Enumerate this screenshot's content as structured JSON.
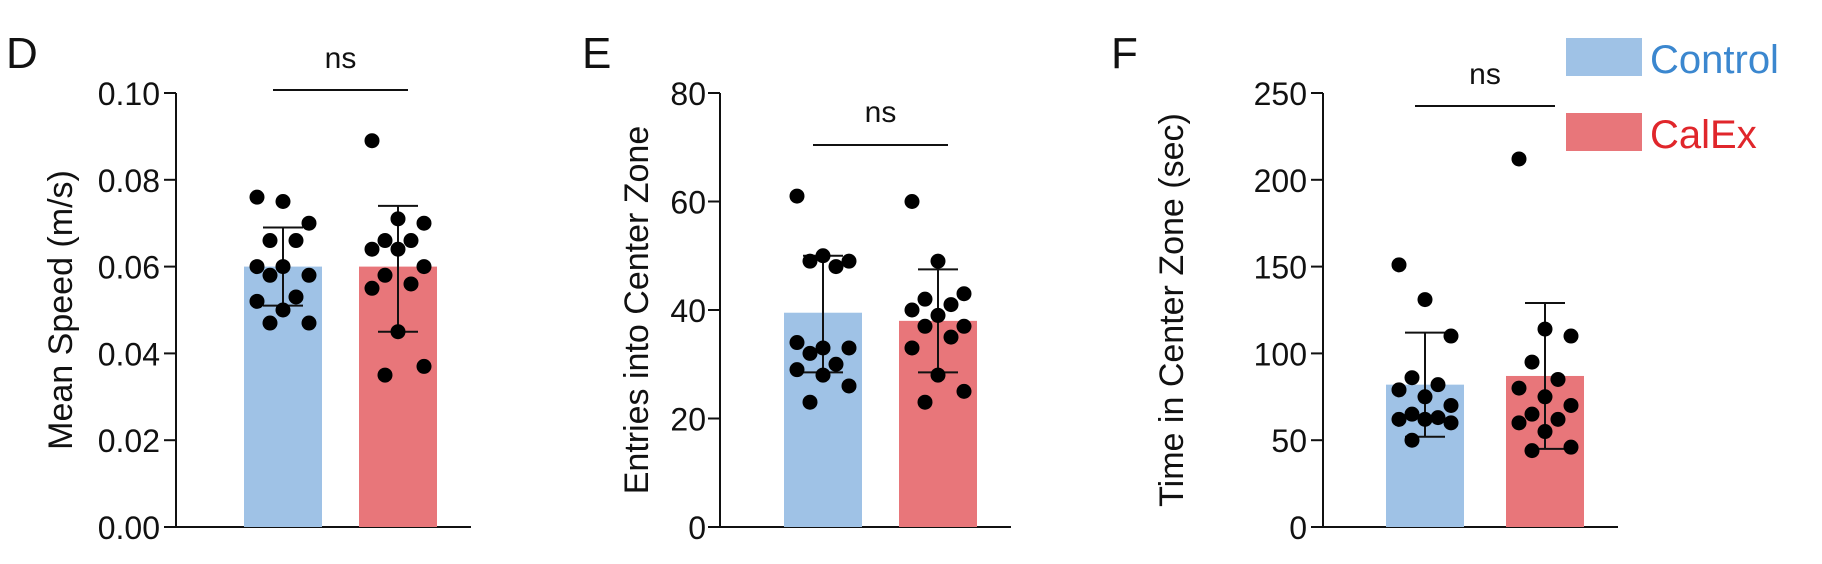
{
  "colors": {
    "control": "#9fc2e6",
    "calex": "#e8767a",
    "control_text": "#3b87cf",
    "calex_text": "#e0262b",
    "axis": "#111111",
    "points": "#000000"
  },
  "legend": {
    "items": [
      {
        "label": "Control",
        "color": "#9fc2e6",
        "text_color": "#3b87cf"
      },
      {
        "label": "CalEx",
        "color": "#e8767a",
        "text_color": "#e0262b"
      }
    ]
  },
  "chart_data": [
    {
      "panel": "D",
      "type": "bar",
      "title": "",
      "categories": [
        "Control",
        "CalEx"
      ],
      "ylabel": "Mean Speed (m/s)",
      "ylim": [
        0,
        0.1
      ],
      "yticks": [
        0,
        0.02,
        0.04,
        0.06,
        0.08,
        0.1
      ],
      "ytick_labels": [
        "0.00",
        "0.02",
        "0.04",
        "0.06",
        "0.08",
        "0.10"
      ],
      "values": [
        0.06,
        0.06
      ],
      "error_low": [
        0.051,
        0.045
      ],
      "error_high": [
        0.069,
        0.074
      ],
      "points": [
        [
          0.076,
          0.075,
          0.07,
          0.066,
          0.066,
          0.06,
          0.06,
          0.058,
          0.058,
          0.053,
          0.052,
          0.05,
          0.047,
          0.047
        ],
        [
          0.089,
          0.071,
          0.07,
          0.066,
          0.066,
          0.064,
          0.064,
          0.06,
          0.058,
          0.056,
          0.055,
          0.045,
          0.037,
          0.035
        ]
      ],
      "significance": "ns"
    },
    {
      "panel": "E",
      "type": "bar",
      "title": "",
      "categories": [
        "Control",
        "CalEx"
      ],
      "ylabel": "Entries into Center Zone",
      "ylim": [
        0,
        80
      ],
      "yticks": [
        0,
        20,
        40,
        60,
        80
      ],
      "ytick_labels": [
        "0",
        "20",
        "40",
        "60",
        "80"
      ],
      "values": [
        39.5,
        38
      ],
      "error_low": [
        28.5,
        28.5
      ],
      "error_high": [
        50,
        47.5
      ],
      "points": [
        [
          61,
          50,
          49,
          49,
          48,
          34,
          33,
          33,
          32,
          30,
          29,
          28,
          26,
          23
        ],
        [
          60,
          49,
          43,
          42,
          41,
          40,
          39,
          37,
          37,
          35,
          33,
          28,
          25,
          23
        ]
      ],
      "significance": "ns"
    },
    {
      "panel": "F",
      "type": "bar",
      "title": "",
      "categories": [
        "Control",
        "CalEx"
      ],
      "ylabel": "Time in Center Zone (sec)",
      "ylim": [
        0,
        250
      ],
      "yticks": [
        0,
        50,
        100,
        150,
        200,
        250
      ],
      "ytick_labels": [
        "0",
        "50",
        "100",
        "150",
        "200",
        "250"
      ],
      "values": [
        82,
        87
      ],
      "error_low": [
        52,
        45
      ],
      "error_high": [
        112,
        129
      ],
      "points": [
        [
          151,
          131,
          110,
          86,
          82,
          79,
          75,
          70,
          65,
          63,
          62,
          62,
          60,
          50
        ],
        [
          212,
          114,
          110,
          95,
          85,
          80,
          75,
          70,
          65,
          62,
          60,
          55,
          46,
          44
        ]
      ],
      "significance": "ns"
    }
  ]
}
